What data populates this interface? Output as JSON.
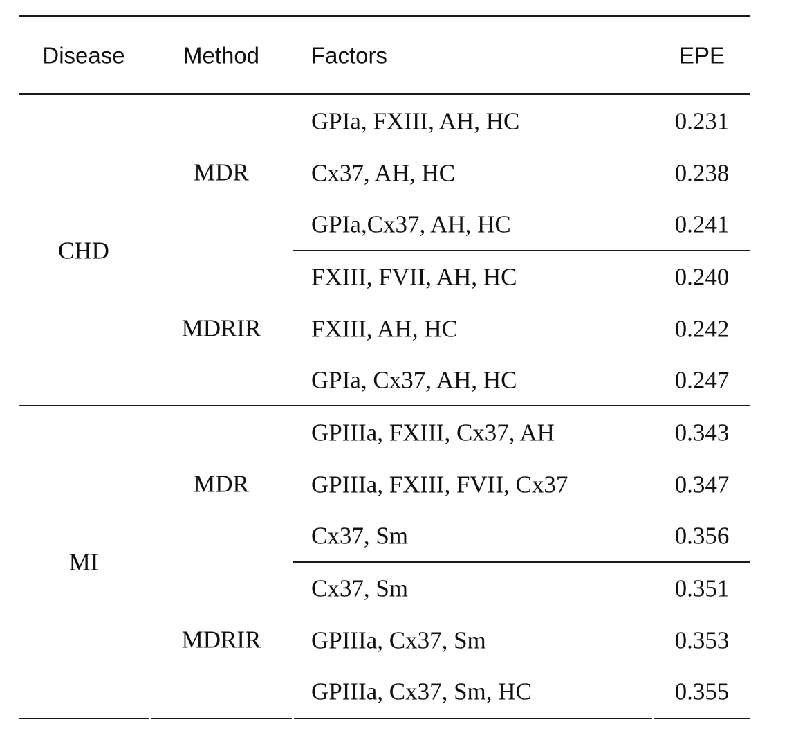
{
  "headers": {
    "disease": "Disease",
    "method": "Method",
    "factors": "Factors",
    "epe": "EPE"
  },
  "groups": [
    {
      "disease": "CHD",
      "methods": [
        {
          "name": "MDR",
          "rows": [
            {
              "factors": "GPIa, FXIII, AH, HC",
              "epe": "0.231"
            },
            {
              "factors": "Cx37, AH, HC",
              "epe": "0.238"
            },
            {
              "factors": "GPIa,Cx37, AH, HC",
              "epe": "0.241"
            }
          ]
        },
        {
          "name": "MDRIR",
          "rows": [
            {
              "factors": "FXIII, FVII, AH, HC",
              "epe": "0.240"
            },
            {
              "factors": "FXIII, AH, HC",
              "epe": "0.242"
            },
            {
              "factors": "GPIa, Cx37, AH, HC",
              "epe": "0.247"
            }
          ]
        }
      ]
    },
    {
      "disease": "MI",
      "methods": [
        {
          "name": "MDR",
          "rows": [
            {
              "factors": "GPIIIa, FXIII, Cx37, AH",
              "epe": "0.343"
            },
            {
              "factors": "GPIIIa, FXIII, FVII, Cx37",
              "epe": "0.347"
            },
            {
              "factors": "Cx37, Sm",
              "epe": "0.356"
            }
          ]
        },
        {
          "name": "MDRIR",
          "rows": [
            {
              "factors": "Cx37, Sm",
              "epe": "0.351"
            },
            {
              "factors": "GPIIIa, Cx37, Sm",
              "epe": "0.353"
            },
            {
              "factors": "GPIIIa, Cx37, Sm, HC",
              "epe": "0.355"
            }
          ]
        }
      ]
    }
  ]
}
